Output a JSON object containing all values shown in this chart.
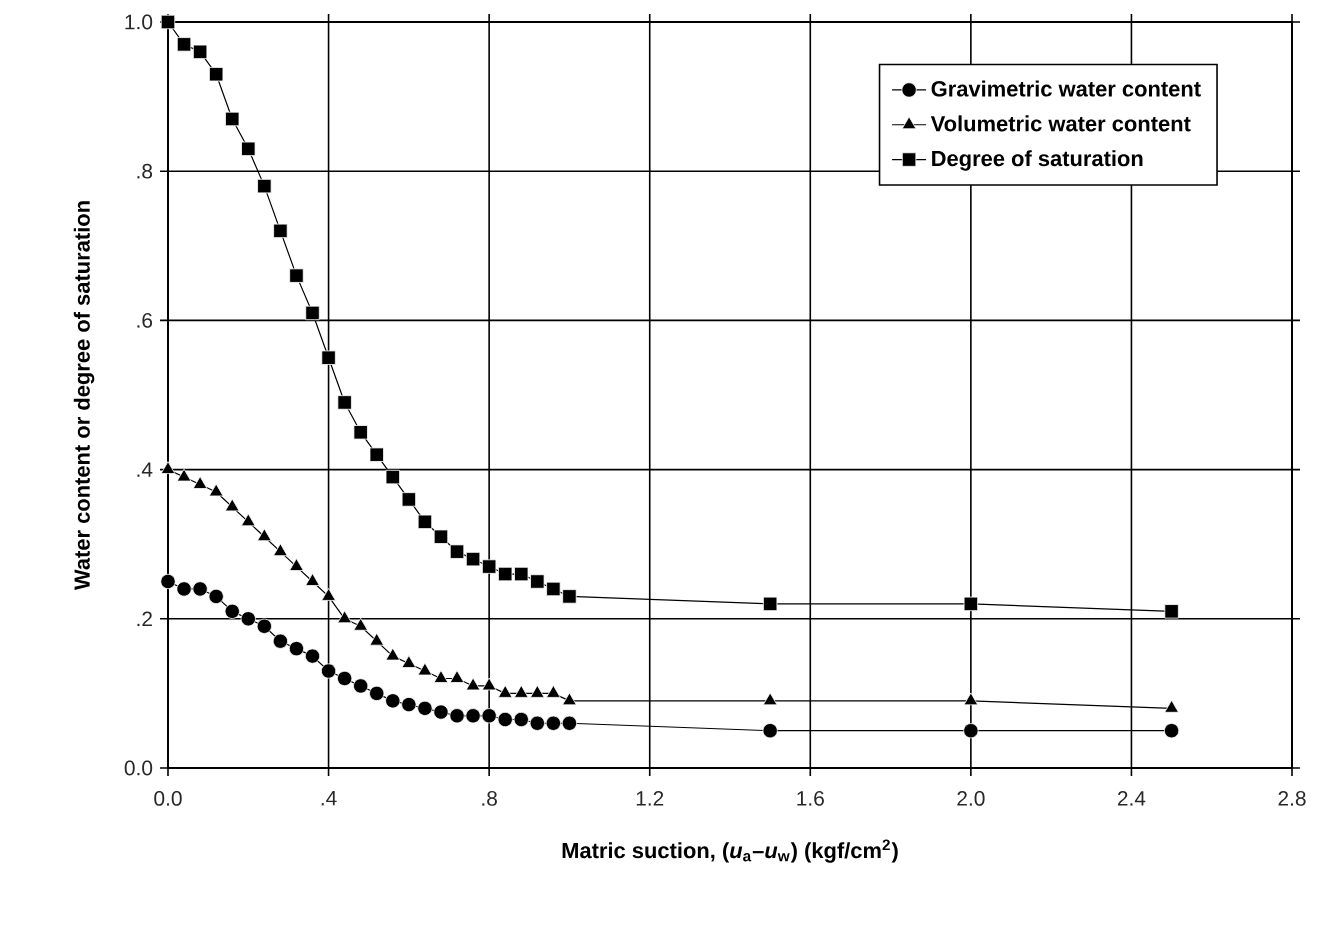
{
  "chart_data": {
    "type": "line",
    "xlabel": "Matric suction, (*u*$_{a}$–*u*$_{w}$) (kgf/cm$^{2}$)",
    "ylabel": "Water content or degree of saturation",
    "xlim": [
      0,
      2.8
    ],
    "ylim": [
      0,
      1.0
    ],
    "xticks": [
      {
        "value": 0,
        "label": "0.0"
      },
      {
        "value": 0.4,
        "label": ".4"
      },
      {
        "value": 0.8,
        "label": ".8"
      },
      {
        "value": 1.2,
        "label": "1.2"
      },
      {
        "value": 1.6,
        "label": "1.6"
      },
      {
        "value": 2.0,
        "label": "2.0"
      },
      {
        "value": 2.4,
        "label": "2.4"
      },
      {
        "value": 2.8,
        "label": "2.8"
      }
    ],
    "yticks": [
      {
        "value": 0,
        "label": "0.0"
      },
      {
        "value": 0.2,
        "label": ".2"
      },
      {
        "value": 0.4,
        "label": ".4"
      },
      {
        "value": 0.6,
        "label": ".6"
      },
      {
        "value": 0.8,
        "label": ".8"
      },
      {
        "value": 1.0,
        "label": "1.0"
      }
    ],
    "grid": true,
    "legend": "top right",
    "line_style": "solid",
    "x": [
      0,
      0.04,
      0.08,
      0.12,
      0.16,
      0.2,
      0.24,
      0.28,
      0.32,
      0.36,
      0.4,
      0.44,
      0.48,
      0.52,
      0.56,
      0.6,
      0.64,
      0.68,
      0.72,
      0.76,
      0.8,
      0.84,
      0.88,
      0.92,
      0.96,
      1.0,
      1.5,
      2.0,
      2.5
    ],
    "series": [
      {
        "name": "Gravimetric water content",
        "color": "#000000",
        "marker": "circle",
        "values": [
          0.25,
          0.24,
          0.24,
          0.23,
          0.21,
          0.2,
          0.19,
          0.17,
          0.16,
          0.15,
          0.13,
          0.12,
          0.11,
          0.1,
          0.09,
          0.085,
          0.08,
          0.075,
          0.07,
          0.07,
          0.07,
          0.065,
          0.065,
          0.06,
          0.06,
          0.06,
          0.05,
          0.05,
          0.05
        ]
      },
      {
        "name": "Volumetric water content",
        "color": "#000000",
        "marker": "triangle",
        "values": [
          0.4,
          0.39,
          0.38,
          0.37,
          0.35,
          0.33,
          0.31,
          0.29,
          0.27,
          0.25,
          0.23,
          0.2,
          0.19,
          0.17,
          0.15,
          0.14,
          0.13,
          0.12,
          0.12,
          0.11,
          0.11,
          0.1,
          0.1,
          0.1,
          0.1,
          0.09,
          0.09,
          0.09,
          0.08
        ]
      },
      {
        "name": "Degree of saturation",
        "color": "#000000",
        "marker": "square",
        "values": [
          1.0,
          0.97,
          0.96,
          0.93,
          0.87,
          0.83,
          0.78,
          0.72,
          0.66,
          0.61,
          0.55,
          0.49,
          0.45,
          0.42,
          0.39,
          0.36,
          0.33,
          0.31,
          0.29,
          0.28,
          0.27,
          0.26,
          0.26,
          0.25,
          0.24,
          0.23,
          0.22,
          0.22,
          0.21
        ]
      }
    ]
  }
}
